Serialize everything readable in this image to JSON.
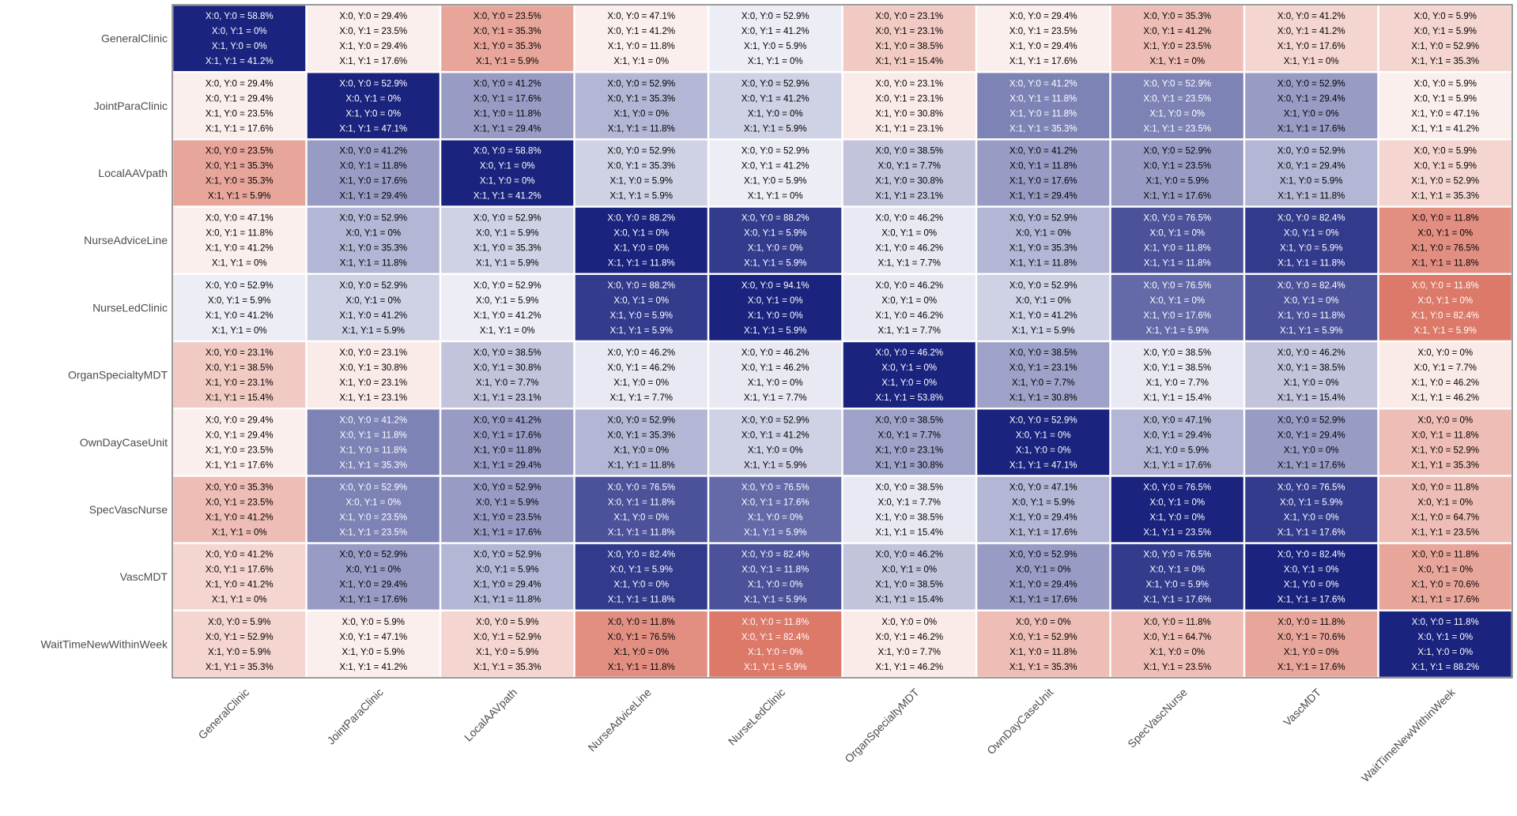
{
  "chart_data": {
    "type": "heatmap",
    "categories": [
      "GeneralClinic",
      "JointParaClinic",
      "LocalAAVpath",
      "NurseAdviceLine",
      "NurseLedClinic",
      "OrganSpecialtyMDT",
      "OwnDayCaseUnit",
      "SpecVascNurse",
      "VascMDT",
      "WaitTimeNewWithinWeek"
    ],
    "cell_label_prefixes": [
      "X:0, Y:0 = ",
      "X:0, Y:1 = ",
      "X:1, Y:0 = ",
      "X:1, Y:1 = "
    ],
    "percent_suffix": "%",
    "cells": [
      [
        [
          58.8,
          0,
          0,
          41.2
        ],
        [
          29.4,
          23.5,
          29.4,
          17.6
        ],
        [
          23.5,
          35.3,
          35.3,
          5.9
        ],
        [
          47.1,
          41.2,
          11.8,
          0
        ],
        [
          52.9,
          41.2,
          5.9,
          0
        ],
        [
          23.1,
          23.1,
          38.5,
          15.4
        ],
        [
          29.4,
          23.5,
          29.4,
          17.6
        ],
        [
          35.3,
          41.2,
          23.5,
          0
        ],
        [
          41.2,
          41.2,
          17.6,
          0
        ],
        [
          5.9,
          5.9,
          52.9,
          35.3
        ]
      ],
      [
        [
          29.4,
          29.4,
          23.5,
          17.6
        ],
        [
          52.9,
          0,
          0,
          47.1
        ],
        [
          41.2,
          17.6,
          11.8,
          29.4
        ],
        [
          52.9,
          35.3,
          0,
          11.8
        ],
        [
          52.9,
          41.2,
          0,
          5.9
        ],
        [
          23.1,
          23.1,
          30.8,
          23.1
        ],
        [
          41.2,
          11.8,
          11.8,
          35.3
        ],
        [
          52.9,
          23.5,
          0,
          23.5
        ],
        [
          52.9,
          29.4,
          0,
          17.6
        ],
        [
          5.9,
          5.9,
          47.1,
          41.2
        ]
      ],
      [
        [
          23.5,
          35.3,
          35.3,
          5.9
        ],
        [
          41.2,
          11.8,
          17.6,
          29.4
        ],
        [
          58.8,
          0,
          0,
          41.2
        ],
        [
          52.9,
          35.3,
          5.9,
          5.9
        ],
        [
          52.9,
          41.2,
          5.9,
          0
        ],
        [
          38.5,
          7.7,
          30.8,
          23.1
        ],
        [
          41.2,
          11.8,
          17.6,
          29.4
        ],
        [
          52.9,
          23.5,
          5.9,
          17.6
        ],
        [
          52.9,
          29.4,
          5.9,
          11.8
        ],
        [
          5.9,
          5.9,
          52.9,
          35.3
        ]
      ],
      [
        [
          47.1,
          11.8,
          41.2,
          0
        ],
        [
          52.9,
          0,
          35.3,
          11.8
        ],
        [
          52.9,
          5.9,
          35.3,
          5.9
        ],
        [
          88.2,
          0,
          0,
          11.8
        ],
        [
          88.2,
          5.9,
          0,
          5.9
        ],
        [
          46.2,
          0,
          46.2,
          7.7
        ],
        [
          52.9,
          0,
          35.3,
          11.8
        ],
        [
          76.5,
          0,
          11.8,
          11.8
        ],
        [
          82.4,
          0,
          5.9,
          11.8
        ],
        [
          11.8,
          0,
          76.5,
          11.8
        ]
      ],
      [
        [
          52.9,
          5.9,
          41.2,
          0
        ],
        [
          52.9,
          0,
          41.2,
          5.9
        ],
        [
          52.9,
          5.9,
          41.2,
          0
        ],
        [
          88.2,
          0,
          5.9,
          5.9
        ],
        [
          94.1,
          0,
          0,
          5.9
        ],
        [
          46.2,
          0,
          46.2,
          7.7
        ],
        [
          52.9,
          0,
          41.2,
          5.9
        ],
        [
          76.5,
          0,
          17.6,
          5.9
        ],
        [
          82.4,
          0,
          11.8,
          5.9
        ],
        [
          11.8,
          0,
          82.4,
          5.9
        ]
      ],
      [
        [
          23.1,
          38.5,
          23.1,
          15.4
        ],
        [
          23.1,
          30.8,
          23.1,
          23.1
        ],
        [
          38.5,
          30.8,
          7.7,
          23.1
        ],
        [
          46.2,
          46.2,
          0,
          7.7
        ],
        [
          46.2,
          46.2,
          0,
          7.7
        ],
        [
          46.2,
          0,
          0,
          53.8
        ],
        [
          38.5,
          23.1,
          7.7,
          30.8
        ],
        [
          38.5,
          38.5,
          7.7,
          15.4
        ],
        [
          46.2,
          38.5,
          0,
          15.4
        ],
        [
          0,
          7.7,
          46.2,
          46.2
        ]
      ],
      [
        [
          29.4,
          29.4,
          23.5,
          17.6
        ],
        [
          41.2,
          11.8,
          11.8,
          35.3
        ],
        [
          41.2,
          17.6,
          11.8,
          29.4
        ],
        [
          52.9,
          35.3,
          0,
          11.8
        ],
        [
          52.9,
          41.2,
          0,
          5.9
        ],
        [
          38.5,
          7.7,
          23.1,
          30.8
        ],
        [
          52.9,
          0,
          0,
          47.1
        ],
        [
          47.1,
          29.4,
          5.9,
          17.6
        ],
        [
          52.9,
          29.4,
          0,
          17.6
        ],
        [
          0,
          11.8,
          52.9,
          35.3
        ]
      ],
      [
        [
          35.3,
          23.5,
          41.2,
          0
        ],
        [
          52.9,
          0,
          23.5,
          23.5
        ],
        [
          52.9,
          5.9,
          23.5,
          17.6
        ],
        [
          76.5,
          11.8,
          0,
          11.8
        ],
        [
          76.5,
          17.6,
          0,
          5.9
        ],
        [
          38.5,
          7.7,
          38.5,
          15.4
        ],
        [
          47.1,
          5.9,
          29.4,
          17.6
        ],
        [
          76.5,
          0,
          0,
          23.5
        ],
        [
          76.5,
          5.9,
          0,
          17.6
        ],
        [
          11.8,
          0,
          64.7,
          23.5
        ]
      ],
      [
        [
          41.2,
          17.6,
          41.2,
          0
        ],
        [
          52.9,
          0,
          29.4,
          17.6
        ],
        [
          52.9,
          5.9,
          29.4,
          11.8
        ],
        [
          82.4,
          5.9,
          0,
          11.8
        ],
        [
          82.4,
          11.8,
          0,
          5.9
        ],
        [
          46.2,
          0,
          38.5,
          15.4
        ],
        [
          52.9,
          0,
          29.4,
          17.6
        ],
        [
          76.5,
          0,
          5.9,
          17.6
        ],
        [
          82.4,
          0,
          0,
          17.6
        ],
        [
          11.8,
          0,
          70.6,
          17.6
        ]
      ],
      [
        [
          5.9,
          52.9,
          5.9,
          35.3
        ],
        [
          5.9,
          47.1,
          5.9,
          41.2
        ],
        [
          5.9,
          52.9,
          5.9,
          35.3
        ],
        [
          11.8,
          76.5,
          0,
          11.8
        ],
        [
          11.8,
          82.4,
          0,
          5.9
        ],
        [
          0,
          46.2,
          7.7,
          46.2
        ],
        [
          0,
          52.9,
          11.8,
          35.3
        ],
        [
          11.8,
          64.7,
          0,
          23.5
        ],
        [
          11.8,
          70.6,
          0,
          17.6
        ],
        [
          11.8,
          0,
          0,
          88.2
        ]
      ]
    ],
    "colors": {
      "positive": "#1a237e",
      "negative": "#d6604d",
      "neutral": "#ffffff",
      "grid": "#ffffff",
      "panel_border": "#333333",
      "text": "#4d4d4d"
    },
    "legend": "none",
    "grid": false
  }
}
